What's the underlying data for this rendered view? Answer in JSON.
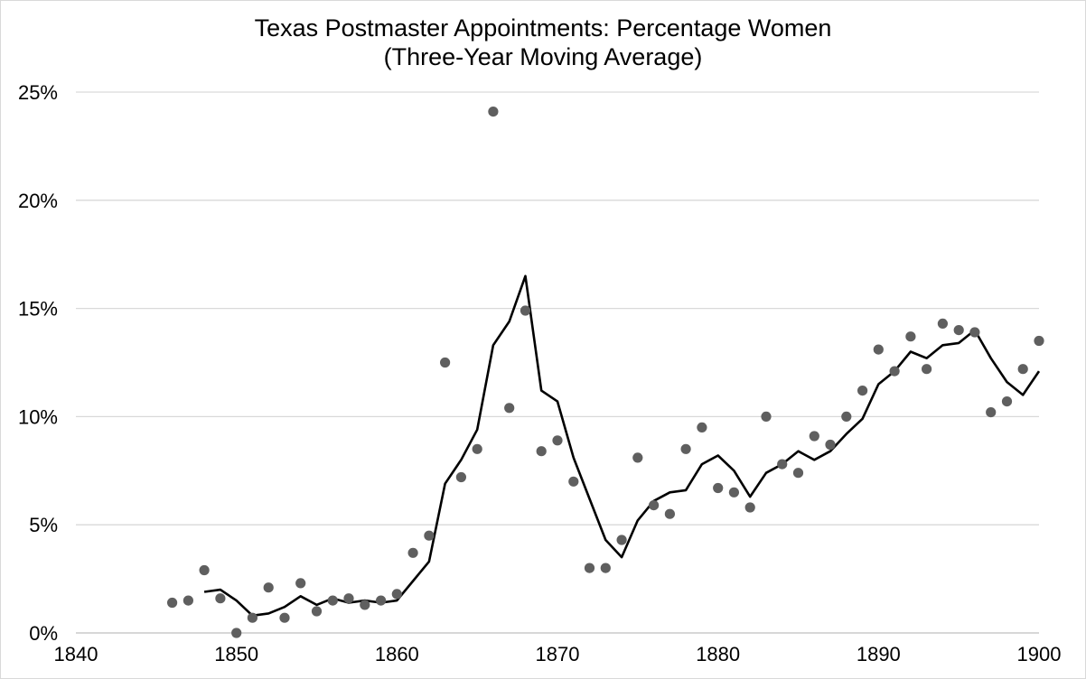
{
  "chart_data": {
    "type": "scatter",
    "title": "Texas Postmaster Appointments: Percentage Women",
    "subtitle": "(Three-Year Moving Average)",
    "xlabel": "",
    "ylabel": "",
    "xlim": [
      1840,
      1900
    ],
    "ylim": [
      0,
      0.25
    ],
    "x_ticks": [
      "1840",
      "1850",
      "1860",
      "1870",
      "1880",
      "1890",
      "1900"
    ],
    "y_ticks": [
      "0%",
      "5%",
      "10%",
      "15%",
      "20%",
      "25%"
    ],
    "grid": "horizontal",
    "legend": "none",
    "colors": {
      "points": "#5f5f5f",
      "line": "#000000",
      "grid": "#d9d9d9"
    },
    "series": [
      {
        "type": "scatter",
        "x": [
          1846,
          1847,
          1848,
          1849,
          1850,
          1851,
          1852,
          1853,
          1854,
          1855,
          1856,
          1857,
          1858,
          1859,
          1860,
          1861,
          1862,
          1863,
          1864,
          1865,
          1866,
          1867,
          1868,
          1869,
          1870,
          1871,
          1872,
          1873,
          1874,
          1875,
          1876,
          1877,
          1878,
          1879,
          1880,
          1881,
          1882,
          1883,
          1884,
          1885,
          1886,
          1887,
          1888,
          1889,
          1890,
          1891,
          1892,
          1893,
          1894,
          1895,
          1896,
          1897,
          1898,
          1899,
          1900
        ],
        "y": [
          0.014,
          0.015,
          0.029,
          0.016,
          0.0,
          0.007,
          0.021,
          0.007,
          0.023,
          0.01,
          0.015,
          0.016,
          0.013,
          0.015,
          0.018,
          0.037,
          0.045,
          0.125,
          0.072,
          0.085,
          0.241,
          0.104,
          0.149,
          0.084,
          0.089,
          0.07,
          0.03,
          0.03,
          0.043,
          0.081,
          0.059,
          0.055,
          0.085,
          0.095,
          0.067,
          0.065,
          0.058,
          0.1,
          0.078,
          0.074,
          0.091,
          0.087,
          0.1,
          0.112,
          0.131,
          0.121,
          0.137,
          0.122,
          0.143,
          0.14,
          0.139,
          0.102,
          0.107,
          0.122,
          0.135
        ]
      },
      {
        "type": "line",
        "x": [
          1848,
          1849,
          1850,
          1851,
          1852,
          1853,
          1854,
          1855,
          1856,
          1857,
          1858,
          1859,
          1860,
          1861,
          1862,
          1863,
          1864,
          1865,
          1866,
          1867,
          1868,
          1869,
          1870,
          1871,
          1872,
          1873,
          1874,
          1875,
          1876,
          1877,
          1878,
          1879,
          1880,
          1881,
          1882,
          1883,
          1884,
          1885,
          1886,
          1887,
          1888,
          1889,
          1890,
          1891,
          1892,
          1893,
          1894,
          1895,
          1896,
          1897,
          1898,
          1899,
          1900
        ],
        "y": [
          0.019,
          0.02,
          0.015,
          0.008,
          0.009,
          0.012,
          0.017,
          0.013,
          0.016,
          0.014,
          0.015,
          0.014,
          0.015,
          0.024,
          0.033,
          0.069,
          0.08,
          0.094,
          0.133,
          0.144,
          0.165,
          0.112,
          0.107,
          0.081,
          0.062,
          0.043,
          0.035,
          0.052,
          0.061,
          0.065,
          0.066,
          0.078,
          0.082,
          0.075,
          0.063,
          0.074,
          0.078,
          0.084,
          0.08,
          0.084,
          0.092,
          0.099,
          0.115,
          0.121,
          0.13,
          0.127,
          0.133,
          0.134,
          0.14,
          0.127,
          0.116,
          0.11,
          0.121
        ]
      }
    ]
  }
}
